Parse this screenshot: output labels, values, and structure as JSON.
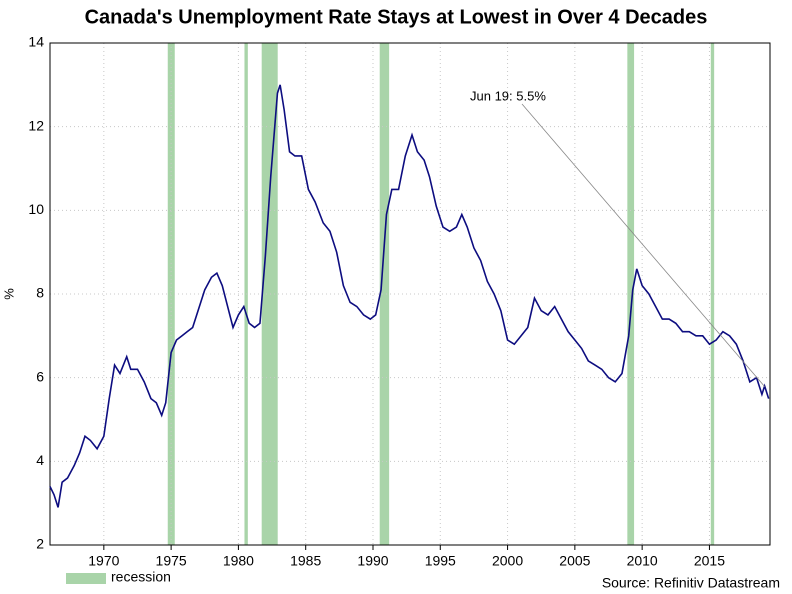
{
  "chart_data": {
    "type": "line",
    "title": "Canada's Unemployment Rate Stays at Lowest in Over 4 Decades",
    "y_label": "%",
    "source": "Source: Refinitiv Datastream",
    "annotation": "Jun 19: 5.5%",
    "xlim": [
      1966,
      2019.5
    ],
    "xticks": [
      1970,
      1975,
      1980,
      1985,
      1990,
      1995,
      2000,
      2005,
      2010,
      2015
    ],
    "ylim": [
      2,
      14
    ],
    "yticks": [
      2,
      4,
      6,
      8,
      10,
      12,
      14
    ],
    "grid": true,
    "recessions": {
      "name": "recession",
      "color": "#a9d4a9",
      "bands": [
        [
          1974.75,
          1975.27
        ],
        [
          1980.45,
          1980.7
        ],
        [
          1981.73,
          1982.92
        ],
        [
          1990.5,
          1991.2
        ],
        [
          2008.9,
          2009.4
        ],
        [
          2015.1,
          2015.35
        ]
      ]
    },
    "series": [
      {
        "name": "Unemployment rate",
        "color": "#0d0d80",
        "x": [
          1966.0,
          1966.3,
          1966.6,
          1966.9,
          1967.3,
          1967.8,
          1968.2,
          1968.6,
          1969.0,
          1969.5,
          1970.0,
          1970.4,
          1970.8,
          1971.2,
          1971.7,
          1972.0,
          1972.5,
          1973.0,
          1973.5,
          1973.9,
          1974.3,
          1974.6,
          1975.0,
          1975.4,
          1975.8,
          1976.2,
          1976.6,
          1977.0,
          1977.5,
          1978.0,
          1978.4,
          1978.8,
          1979.2,
          1979.6,
          1980.0,
          1980.4,
          1980.8,
          1981.2,
          1981.6,
          1982.0,
          1982.4,
          1982.9,
          1983.1,
          1983.4,
          1983.8,
          1984.2,
          1984.7,
          1985.2,
          1985.7,
          1986.3,
          1986.8,
          1987.3,
          1987.8,
          1988.3,
          1988.8,
          1989.3,
          1989.8,
          1990.2,
          1990.6,
          1991.0,
          1991.4,
          1991.9,
          1992.4,
          1992.9,
          1993.3,
          1993.8,
          1994.2,
          1994.7,
          1995.2,
          1995.7,
          1996.2,
          1996.6,
          1997.0,
          1997.5,
          1998.0,
          1998.5,
          1999.0,
          1999.5,
          2000.0,
          2000.5,
          2001.0,
          2001.5,
          2002.0,
          2002.5,
          2003.0,
          2003.5,
          2004.0,
          2004.5,
          2005.0,
          2005.5,
          2006.0,
          2006.5,
          2007.0,
          2007.5,
          2008.0,
          2008.5,
          2009.0,
          2009.3,
          2009.6,
          2010.0,
          2010.5,
          2011.0,
          2011.5,
          2012.0,
          2012.5,
          2013.0,
          2013.5,
          2014.0,
          2014.5,
          2015.0,
          2015.5,
          2016.0,
          2016.5,
          2017.0,
          2017.5,
          2018.0,
          2018.5,
          2018.9,
          2019.1,
          2019.4
        ],
        "values": [
          3.4,
          3.2,
          2.9,
          3.5,
          3.6,
          3.9,
          4.2,
          4.6,
          4.5,
          4.3,
          4.6,
          5.5,
          6.3,
          6.1,
          6.5,
          6.2,
          6.2,
          5.9,
          5.5,
          5.4,
          5.1,
          5.4,
          6.6,
          6.9,
          7.0,
          7.1,
          7.2,
          7.6,
          8.1,
          8.4,
          8.5,
          8.2,
          7.7,
          7.2,
          7.5,
          7.7,
          7.3,
          7.2,
          7.3,
          8.9,
          10.8,
          12.8,
          13.0,
          12.4,
          11.4,
          11.3,
          11.3,
          10.5,
          10.2,
          9.7,
          9.5,
          9.0,
          8.2,
          7.8,
          7.7,
          7.5,
          7.4,
          7.5,
          8.1,
          9.9,
          10.5,
          10.5,
          11.3,
          11.8,
          11.4,
          11.2,
          10.8,
          10.1,
          9.6,
          9.5,
          9.6,
          9.9,
          9.6,
          9.1,
          8.8,
          8.3,
          8.0,
          7.6,
          6.9,
          6.8,
          7.0,
          7.2,
          7.9,
          7.6,
          7.5,
          7.7,
          7.4,
          7.1,
          6.9,
          6.7,
          6.4,
          6.3,
          6.2,
          6.0,
          5.9,
          6.1,
          7.0,
          8.1,
          8.6,
          8.2,
          8.0,
          7.7,
          7.4,
          7.4,
          7.3,
          7.1,
          7.1,
          7.0,
          7.0,
          6.8,
          6.9,
          7.1,
          7.0,
          6.8,
          6.4,
          5.9,
          6.0,
          5.6,
          5.8,
          5.5
        ]
      }
    ]
  }
}
